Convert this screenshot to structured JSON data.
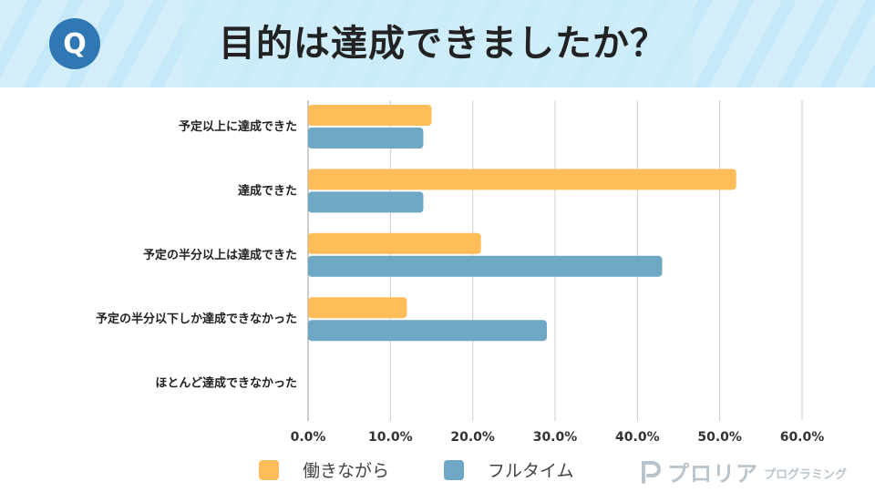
{
  "header": {
    "badge": "Q",
    "title": "目的は達成できましたか？"
  },
  "chart_data": {
    "type": "bar",
    "orientation": "horizontal",
    "categories": [
      "予定以上に達成できた",
      "達成できた",
      "予定の半分以上は達成できた",
      "予定の半分以下しか達成できなかった",
      "ほとんど達成できなかった"
    ],
    "series": [
      {
        "name": "働きながら",
        "values": [
          15,
          52,
          21,
          12,
          0
        ],
        "color": "#ffbd59"
      },
      {
        "name": "フルタイム",
        "values": [
          14,
          14,
          43,
          29,
          0
        ],
        "color": "#6fa8c4"
      }
    ],
    "xlim": [
      0,
      60
    ],
    "xticks": [
      0,
      10,
      20,
      30,
      40,
      50,
      60
    ],
    "tick_labels": [
      "0.0%",
      "10.0%",
      "20.0%",
      "30.0%",
      "40.0%",
      "50.0%",
      "60.0%"
    ],
    "grid": true,
    "legend_position": "bottom"
  },
  "brand": {
    "name": "プロリア",
    "sub": "プログラミング"
  },
  "colors": {
    "header_stripe": "#d3eef9",
    "badge": "#2f78b4",
    "grid": "#cccccc"
  }
}
